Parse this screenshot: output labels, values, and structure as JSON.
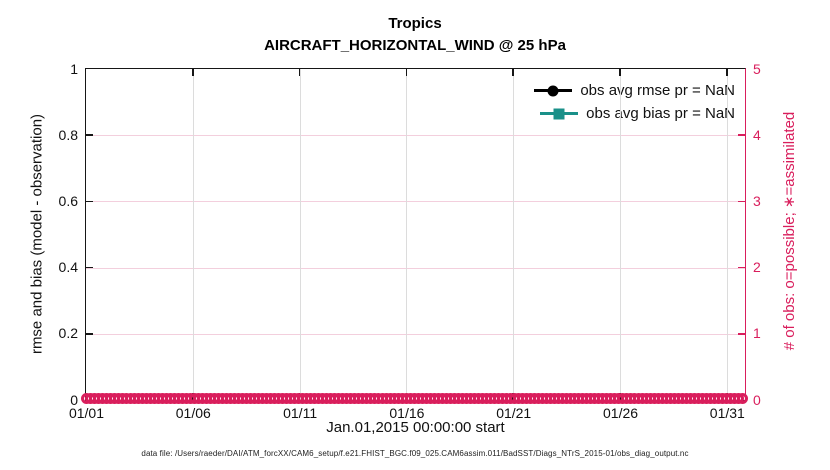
{
  "chart_data": {
    "type": "line",
    "title": "Tropics",
    "subtitle": "AIRCRAFT_HORIZONTAL_WIND @ 25 hPa",
    "xlabel": "Jan.01,2015 00:00:00 start",
    "ylabel_left": "rmse and bias (model - observation)",
    "ylabel_right": "# of obs: o=possible; ∗=assimilated",
    "x_range": [
      0,
      30.85
    ],
    "x_tick_positions": [
      0,
      5,
      10,
      15,
      20,
      25,
      30
    ],
    "x_tick_labels": [
      "01/01",
      "01/06",
      "01/11",
      "01/16",
      "01/21",
      "01/26",
      "01/31"
    ],
    "ylim_left": [
      0,
      1
    ],
    "y_left_tick_values": [
      0,
      0.2,
      0.4,
      0.6,
      0.8,
      1
    ],
    "y_left_tick_labels": [
      "0",
      "0.2",
      "0.4",
      "0.6",
      "0.8",
      "1"
    ],
    "ylim_right": [
      0,
      5
    ],
    "y_right_tick_values": [
      0,
      1,
      2,
      3,
      4,
      5
    ],
    "y_right_tick_labels": [
      "0",
      "1",
      "2",
      "3",
      "4",
      "5"
    ],
    "grid": true,
    "legend_position": "top-right",
    "series": [
      {
        "name": "obs avg rmse pr = NaN",
        "color": "#000000",
        "marker": "circle",
        "values": []
      },
      {
        "name": "obs avg bias pr = NaN",
        "color": "#1a9089",
        "marker": "square",
        "values": []
      }
    ],
    "obs_counts": {
      "label": "obs possible",
      "marker": "o",
      "color": "#d91e5c",
      "count_value": 0,
      "x_start": 0,
      "x_end": 30.85,
      "description": "dense row of circle markers at y = 0 spanning the full date range"
    },
    "colors": {
      "axis_black": "#161616",
      "right_axis_pink": "#d91e5c",
      "bias_teal": "#1a9089",
      "grid_vertical": "#dcdcdc",
      "grid_horizontal_pink": "#f3cfdd"
    }
  },
  "footer": {
    "text": "data file: /Users/raeder/DAI/ATM_forcXX/CAM6_setup/f.e21.FHIST_BGC.f09_025.CAM6assim.011/BadSST/Diags_NTrS_2015-01/obs_diag_output.nc"
  }
}
